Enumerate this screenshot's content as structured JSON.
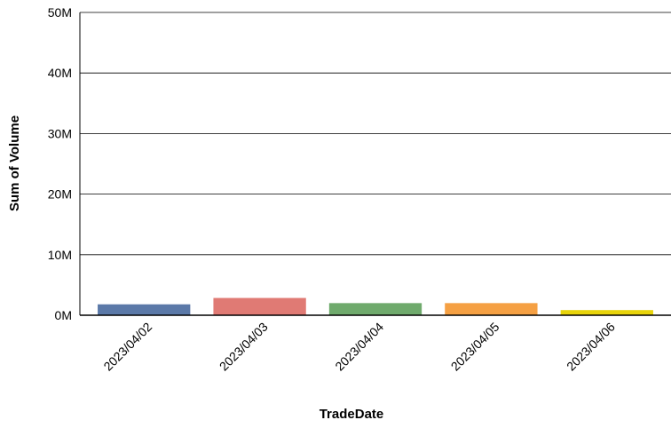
{
  "chart_data": {
    "type": "bar",
    "title": "",
    "xlabel": "TradeDate",
    "ylabel": "Sum of Volume",
    "categories": [
      "2023/04/02",
      "2023/04/03",
      "2023/04/04",
      "2023/04/05",
      "2023/04/06"
    ],
    "values": [
      1800000,
      2850000,
      2000000,
      2000000,
      850000
    ],
    "bar_colors": [
      "#5b79a8",
      "#e07a74",
      "#6faa6c",
      "#f5a043",
      "#e8d40a"
    ],
    "ylim": [
      0,
      50000000
    ],
    "yticks": [
      {
        "value": 0,
        "label": "0M"
      },
      {
        "value": 10000000,
        "label": "10M"
      },
      {
        "value": 20000000,
        "label": "20M"
      },
      {
        "value": 30000000,
        "label": "30M"
      },
      {
        "value": 40000000,
        "label": "40M"
      },
      {
        "value": 50000000,
        "label": "50M"
      }
    ],
    "grid": true,
    "legend": "none"
  }
}
